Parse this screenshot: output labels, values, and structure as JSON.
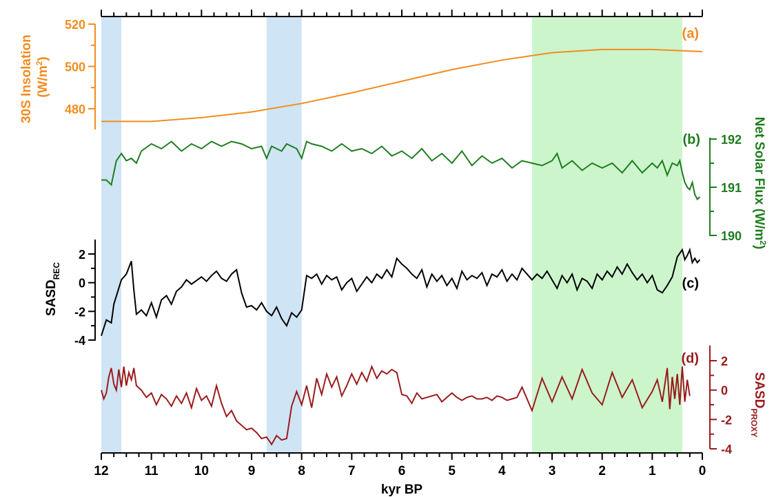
{
  "chart_data": {
    "type": "line",
    "x_axis": {
      "label": "kyr BP",
      "range": [
        12,
        0
      ],
      "ticks": [
        "12",
        "11",
        "10",
        "9",
        "8",
        "7",
        "6",
        "5",
        "4",
        "3",
        "2",
        "1",
        "0"
      ]
    },
    "shaded_intervals": [
      {
        "from": 12.0,
        "to": 11.6,
        "color": "#cfe4f4"
      },
      {
        "from": 8.7,
        "to": 8.0,
        "color": "#cfe4f4"
      },
      {
        "from": 3.4,
        "to": 0.4,
        "color": "#ccf5cc"
      }
    ],
    "panels": [
      {
        "id": "a",
        "panel_label": "(a)",
        "color": "#f28c1e",
        "axis_side": "left",
        "axis_label": "30S Insolation (W/m2)",
        "axis_label_parts": [
          "30S Insolation",
          "(W/m",
          "2",
          ")"
        ],
        "ylim": [
          472,
          520
        ],
        "ticks": [
          "480",
          "500",
          "520"
        ],
        "x": [
          12,
          11,
          10,
          9,
          8,
          7,
          6,
          5,
          4,
          3,
          2,
          1,
          0
        ],
        "values": [
          474,
          474,
          475.8,
          478.5,
          482.5,
          487.5,
          493,
          498.5,
          503,
          506.5,
          508,
          508,
          507
        ]
      },
      {
        "id": "b",
        "panel_label": "(b)",
        "color": "#1e7d1e",
        "axis_side": "right",
        "axis_label": "Net Solar Flux (W/m2)",
        "axis_label_parts": [
          "Net Solar Flux (W/m",
          "2",
          ")"
        ],
        "ylim": [
          190,
          192
        ],
        "ticks": [
          "190",
          "191",
          "192"
        ],
        "x": [
          12,
          11.9,
          11.8,
          11.7,
          11.6,
          11.5,
          11.4,
          11.3,
          11.2,
          11.0,
          10.8,
          10.6,
          10.4,
          10.2,
          10.0,
          9.8,
          9.6,
          9.4,
          9.2,
          9.0,
          8.8,
          8.7,
          8.6,
          8.4,
          8.3,
          8.1,
          8.0,
          7.9,
          7.8,
          7.6,
          7.4,
          7.2,
          7.0,
          6.8,
          6.6,
          6.4,
          6.2,
          6.0,
          5.8,
          5.6,
          5.4,
          5.2,
          5.0,
          4.8,
          4.6,
          4.4,
          4.2,
          4.0,
          3.8,
          3.6,
          3.4,
          3.2,
          3.0,
          2.9,
          2.8,
          2.6,
          2.4,
          2.2,
          2.0,
          1.8,
          1.6,
          1.4,
          1.2,
          1.0,
          0.9,
          0.8,
          0.7,
          0.6,
          0.5,
          0.45,
          0.4,
          0.35,
          0.3,
          0.25,
          0.2,
          0.15,
          0.1,
          0.05
        ],
        "values": [
          191.15,
          191.15,
          191.05,
          191.55,
          191.7,
          191.55,
          191.6,
          191.5,
          191.75,
          191.9,
          191.8,
          191.95,
          191.75,
          191.9,
          191.8,
          191.95,
          191.85,
          191.95,
          191.9,
          191.8,
          191.85,
          191.6,
          191.85,
          191.75,
          191.9,
          191.8,
          191.6,
          191.95,
          191.9,
          191.85,
          191.75,
          191.9,
          191.75,
          191.8,
          191.7,
          191.85,
          191.65,
          191.75,
          191.6,
          191.8,
          191.55,
          191.7,
          191.5,
          191.75,
          191.45,
          191.65,
          191.5,
          191.6,
          191.4,
          191.55,
          191.5,
          191.45,
          191.55,
          191.7,
          191.4,
          191.55,
          191.35,
          191.5,
          191.4,
          191.5,
          191.3,
          191.55,
          191.3,
          191.5,
          191.4,
          191.55,
          191.25,
          191.5,
          191.45,
          191.55,
          191.3,
          191.1,
          191.0,
          190.95,
          191.1,
          190.85,
          190.75,
          190.8
        ]
      },
      {
        "id": "c",
        "panel_label": "(c)",
        "color": "#000000",
        "axis_side": "left",
        "axis_label": "SASDREC",
        "axis_label_parts": [
          "SASD",
          "REC"
        ],
        "ylim": [
          -4,
          2.8
        ],
        "ticks": [
          "-4",
          "-2",
          "0",
          "2"
        ],
        "x": [
          12,
          11.9,
          11.8,
          11.75,
          11.6,
          11.5,
          11.4,
          11.35,
          11.3,
          11.2,
          11.1,
          11.0,
          10.9,
          10.8,
          10.7,
          10.6,
          10.5,
          10.4,
          10.3,
          10.2,
          10.0,
          9.9,
          9.8,
          9.7,
          9.6,
          9.5,
          9.4,
          9.3,
          9.2,
          9.1,
          9.0,
          8.9,
          8.8,
          8.7,
          8.6,
          8.5,
          8.4,
          8.3,
          8.2,
          8.1,
          8.0,
          7.9,
          7.8,
          7.7,
          7.6,
          7.5,
          7.4,
          7.3,
          7.2,
          7.1,
          7.0,
          6.9,
          6.8,
          6.7,
          6.6,
          6.5,
          6.4,
          6.3,
          6.2,
          6.1,
          6.0,
          5.9,
          5.8,
          5.7,
          5.6,
          5.5,
          5.4,
          5.3,
          5.2,
          5.1,
          5.0,
          4.9,
          4.8,
          4.7,
          4.6,
          4.5,
          4.4,
          4.3,
          4.2,
          4.1,
          4.0,
          3.9,
          3.8,
          3.7,
          3.6,
          3.5,
          3.4,
          3.3,
          3.2,
          3.1,
          3.0,
          2.9,
          2.8,
          2.7,
          2.6,
          2.5,
          2.4,
          2.3,
          2.2,
          2.1,
          2.0,
          1.9,
          1.8,
          1.7,
          1.6,
          1.5,
          1.4,
          1.3,
          1.2,
          1.1,
          1.0,
          0.9,
          0.8,
          0.7,
          0.6,
          0.5,
          0.4,
          0.35,
          0.3,
          0.25,
          0.2,
          0.15,
          0.1,
          0.05
        ],
        "values": [
          -3.7,
          -2.6,
          -2.8,
          -1.5,
          0.2,
          0.6,
          1.5,
          -0.5,
          -2.2,
          -1.9,
          -2.3,
          -1.4,
          -2.4,
          -1.2,
          -0.9,
          -1.5,
          -0.6,
          -0.3,
          0.2,
          -0.1,
          0.4,
          0.1,
          0.5,
          0.8,
          0.3,
          0.1,
          0.6,
          0.9,
          -0.7,
          -1.7,
          -1.6,
          -1.9,
          -1.4,
          -2.0,
          -2.3,
          -1.7,
          -2.5,
          -3.0,
          -2.1,
          -2.4,
          -1.9,
          0.5,
          0.3,
          0.6,
          -0.1,
          0.5,
          0.2,
          0.4,
          -0.5,
          0.0,
          0.3,
          -0.6,
          -0.1,
          0.4,
          0.0,
          0.6,
          0.3,
          0.9,
          0.4,
          1.7,
          1.3,
          1.0,
          0.6,
          0.3,
          0.9,
          -0.3,
          0.6,
          0.1,
          0.5,
          -0.2,
          0.3,
          -0.4,
          0.8,
          0.2,
          0.5,
          0.3,
          0.7,
          -0.2,
          0.6,
          0.4,
          0.9,
          0.1,
          0.6,
          0.2,
          1.0,
          0.6,
          0.2,
          0.6,
          0.3,
          0.8,
          0.2,
          -0.4,
          0.5,
          0.0,
          0.6,
          -0.5,
          0.3,
          0.1,
          -0.4,
          0.6,
          0.2,
          0.8,
          0.4,
          1.1,
          0.6,
          1.3,
          0.7,
          0.2,
          0.6,
          0.0,
          0.5,
          -0.5,
          -0.7,
          -0.2,
          0.4,
          1.8,
          2.3,
          1.6,
          1.9,
          2.3,
          1.4,
          1.7,
          1.4,
          1.6
        ]
      },
      {
        "id": "d",
        "panel_label": "(d)",
        "color": "#9a1b1b",
        "axis_side": "right",
        "axis_label": "SASDPROXY",
        "axis_label_parts": [
          "SASD",
          "PROXY"
        ],
        "ylim": [
          -4,
          2.6
        ],
        "ticks": [
          "-4",
          "-2",
          "0",
          "2"
        ],
        "x": [
          12,
          11.95,
          11.9,
          11.85,
          11.8,
          11.75,
          11.7,
          11.65,
          11.6,
          11.55,
          11.5,
          11.45,
          11.4,
          11.35,
          11.3,
          11.2,
          11.1,
          11.0,
          10.9,
          10.8,
          10.7,
          10.6,
          10.5,
          10.4,
          10.3,
          10.2,
          10.1,
          10.0,
          9.9,
          9.8,
          9.7,
          9.6,
          9.5,
          9.4,
          9.3,
          9.2,
          9.1,
          9.0,
          8.9,
          8.8,
          8.7,
          8.6,
          8.5,
          8.4,
          8.3,
          8.2,
          8.1,
          8.0,
          7.9,
          7.8,
          7.7,
          7.6,
          7.5,
          7.4,
          7.3,
          7.2,
          7.1,
          7.0,
          6.9,
          6.8,
          6.7,
          6.6,
          6.5,
          6.4,
          6.3,
          6.2,
          6.1,
          6.0,
          5.9,
          5.8,
          5.7,
          5.6,
          5.5,
          5.4,
          5.3,
          5.2,
          5.1,
          5.0,
          4.9,
          4.8,
          4.7,
          4.6,
          4.5,
          4.4,
          4.3,
          4.2,
          4.1,
          4.0,
          3.9,
          3.8,
          3.7,
          3.6,
          3.4,
          3.2,
          3.0,
          2.8,
          2.6,
          2.4,
          2.2,
          2.0,
          1.8,
          1.6,
          1.4,
          1.2,
          1.0,
          0.9,
          0.8,
          0.7,
          0.65,
          0.6,
          0.55,
          0.5,
          0.45,
          0.4,
          0.35,
          0.3,
          0.25
        ],
        "values": [
          0.0,
          -0.6,
          -0.2,
          0.9,
          1.5,
          0.4,
          0.0,
          1.4,
          0.2,
          1.6,
          0.3,
          1.2,
          0.7,
          1.5,
          0.3,
          0.0,
          -0.5,
          -0.2,
          -1.0,
          -0.3,
          -0.6,
          -1.1,
          -0.4,
          -0.9,
          -0.2,
          -1.2,
          0.1,
          -0.7,
          -0.4,
          -1.1,
          0.3,
          -0.9,
          -1.8,
          -1.4,
          -2.1,
          -2.4,
          -2.7,
          -2.6,
          -2.9,
          -3.3,
          -3.2,
          -3.7,
          -3.1,
          -3.4,
          -3.3,
          -1.1,
          -0.1,
          -1.0,
          0.3,
          -1.2,
          0.8,
          -0.3,
          1.1,
          0.2,
          0.9,
          -0.4,
          0.3,
          1.1,
          0.4,
          1.2,
          0.6,
          1.6,
          0.8,
          1.3,
          1.1,
          1.4,
          1.2,
          -0.3,
          -0.4,
          -0.9,
          -0.2,
          -0.6,
          -0.5,
          -0.4,
          -0.3,
          -0.8,
          -0.5,
          -0.2,
          -0.5,
          -0.7,
          -0.5,
          -0.4,
          -0.6,
          -0.6,
          -0.5,
          -0.7,
          -0.4,
          -0.5,
          -0.7,
          -0.6,
          -0.5,
          0.2,
          -1.4,
          0.8,
          -0.8,
          0.9,
          -0.6,
          1.4,
          -0.2,
          -1.0,
          1.2,
          -0.5,
          0.7,
          -1.2,
          -0.1,
          0.7,
          -0.8,
          1.5,
          -1.3,
          0.9,
          -0.6,
          1.1,
          -1.0,
          1.6,
          -0.8,
          0.7,
          -0.4
        ]
      }
    ]
  }
}
